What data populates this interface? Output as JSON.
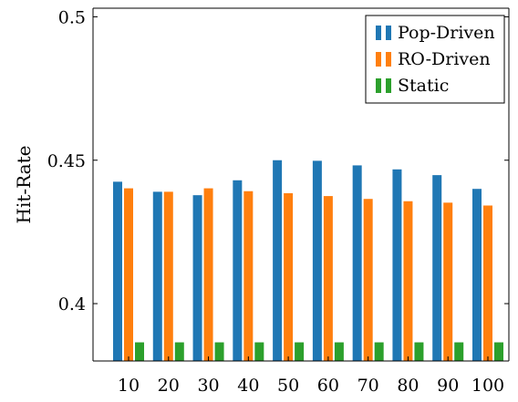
{
  "chart_data": {
    "type": "bar",
    "title": "",
    "xlabel": "",
    "ylabel": "Hit-Rate",
    "categories": [
      "10",
      "20",
      "30",
      "40",
      "50",
      "60",
      "70",
      "80",
      "90",
      "100"
    ],
    "series": [
      {
        "name": "Pop-Driven",
        "color": "#1f77b4",
        "values": [
          0.4425,
          0.439,
          0.4378,
          0.443,
          0.45,
          0.4498,
          0.4482,
          0.4468,
          0.4448,
          0.44
        ]
      },
      {
        "name": "RO-Driven",
        "color": "#ff7f0e",
        "values": [
          0.4402,
          0.439,
          0.4402,
          0.4392,
          0.4385,
          0.4375,
          0.4365,
          0.4357,
          0.4352,
          0.4342
        ]
      },
      {
        "name": "Static",
        "color": "#2ca02c",
        "values": [
          0.3865,
          0.3865,
          0.3865,
          0.3865,
          0.3865,
          0.3865,
          0.3865,
          0.3865,
          0.3865,
          0.3865
        ]
      }
    ],
    "ylim": [
      0.38,
      0.503
    ],
    "yticks": [
      "0.4",
      "0.45",
      "0.5"
    ],
    "ytick_values": [
      0.4,
      0.45,
      0.5
    ],
    "grid": false,
    "legend_position": "top-right"
  }
}
